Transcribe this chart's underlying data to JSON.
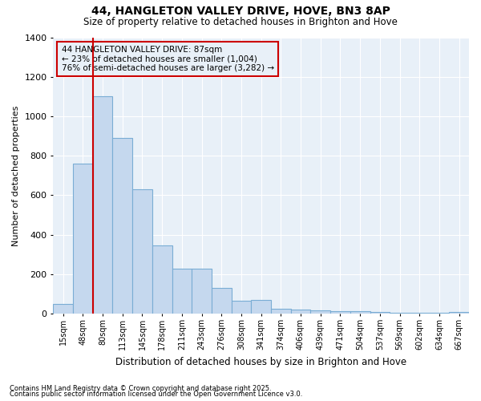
{
  "title": "44, HANGLETON VALLEY DRIVE, HOVE, BN3 8AP",
  "subtitle": "Size of property relative to detached houses in Brighton and Hove",
  "xlabel": "Distribution of detached houses by size in Brighton and Hove",
  "ylabel": "Number of detached properties",
  "categories": [
    "15sqm",
    "48sqm",
    "80sqm",
    "113sqm",
    "145sqm",
    "178sqm",
    "211sqm",
    "243sqm",
    "276sqm",
    "308sqm",
    "341sqm",
    "374sqm",
    "406sqm",
    "439sqm",
    "471sqm",
    "504sqm",
    "537sqm",
    "569sqm",
    "602sqm",
    "634sqm",
    "667sqm"
  ],
  "values": [
    50,
    760,
    1100,
    890,
    630,
    345,
    230,
    230,
    130,
    65,
    70,
    25,
    20,
    18,
    15,
    12,
    8,
    5,
    5,
    3,
    10
  ],
  "bar_color": "#c5d8ee",
  "bar_edge_color": "#7aadd4",
  "vline_color": "#cc0000",
  "annotation_text": "44 HANGLETON VALLEY DRIVE: 87sqm\n← 23% of detached houses are smaller (1,004)\n76% of semi-detached houses are larger (3,282) →",
  "annotation_box_color": "#cc0000",
  "bg_color": "#ffffff",
  "plot_bg_color": "#e8f0f8",
  "grid_color": "#ffffff",
  "ylim": [
    0,
    1400
  ],
  "yticks": [
    0,
    200,
    400,
    600,
    800,
    1000,
    1200,
    1400
  ],
  "footer_line1": "Contains HM Land Registry data © Crown copyright and database right 2025.",
  "footer_line2": "Contains public sector information licensed under the Open Government Licence v3.0."
}
